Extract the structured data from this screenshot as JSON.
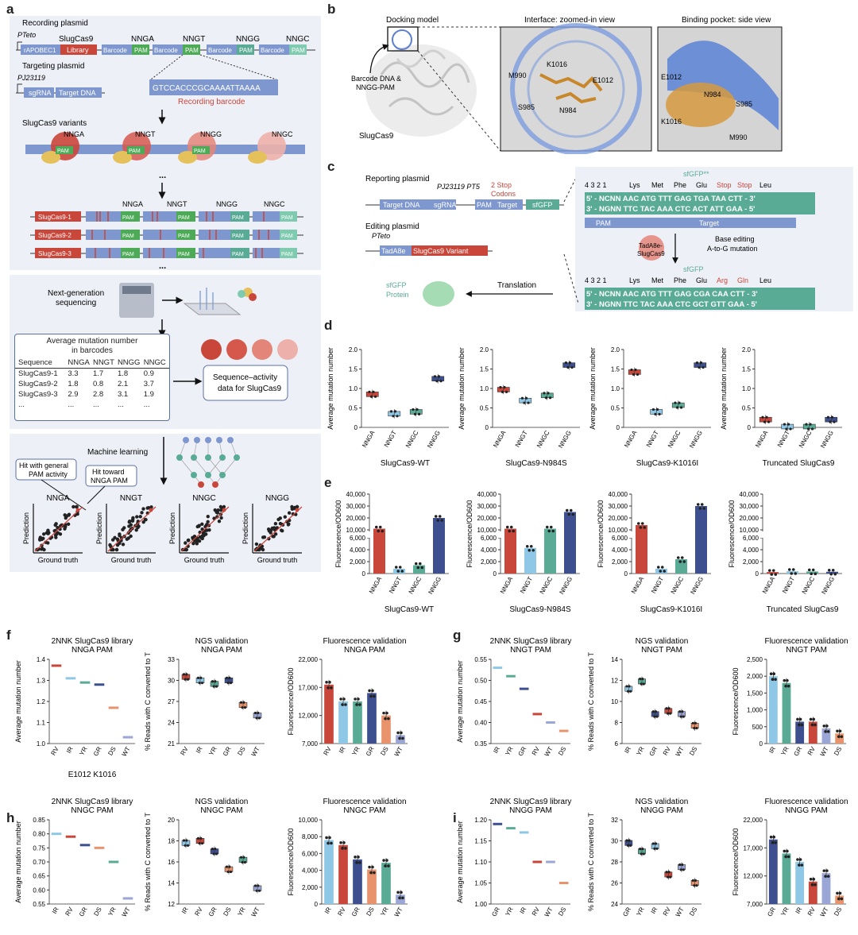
{
  "panels": {
    "a": {
      "letter": "a",
      "recording_plasmid_label": "Recording plasmid",
      "promoter_top": "PTeto",
      "slugcas9_label": "SlugCas9",
      "segments": [
        "rAPOBEC1",
        "Library",
        "Barcode",
        "PAM",
        "Barcode",
        "PAM",
        "Barcode",
        "PAM",
        "Barcode",
        "PAM"
      ],
      "pam_types": [
        "NNGA",
        "NNGT",
        "NNGG",
        "NNGC"
      ],
      "targeting_plasmid_label": "Targeting plasmid",
      "promoter_targeting": "PJ23119",
      "sgrna": "sgRNA",
      "target_dna": "Target DNA",
      "barcode_sequence": "GTCCACCCGCAAAATTAAAA",
      "recording_barcode": "Recording barcode",
      "variants_title": "SlugCas9 variants",
      "ellipsis": "...",
      "variant_rows": [
        "SlugCas9-1",
        "SlugCas9-2",
        "SlugCas9-3"
      ],
      "ngs_label": "Next-generation\nsequencing",
      "table_title": "Average mutation number\nin barcodes",
      "table_headers": [
        "Sequence",
        "NNGA",
        "NNGT",
        "NNGG",
        "NNGC"
      ],
      "table_rows": [
        [
          "SlugCas9-1",
          "3.3",
          "1.7",
          "1.8",
          "0.9"
        ],
        [
          "SlugCas9-2",
          "1.8",
          "0.8",
          "2.1",
          "3.7"
        ],
        [
          "SlugCas9-3",
          "2.9",
          "2.8",
          "3.1",
          "1.9"
        ],
        [
          "...",
          "...",
          "...",
          "...",
          "..."
        ]
      ],
      "seq_activity": "Sequence–activity\ndata for SlugCas9",
      "ml_label": "Machine learning",
      "hit_general": "Hit with general\nPAM activity",
      "hit_nnga": "Hit toward\nNNGA PAM",
      "scatter_titles": [
        "NNGA",
        "NNGT",
        "NNGC",
        "NNGG"
      ],
      "ylabel": "Prediction",
      "xlabel": "Ground truth"
    },
    "b": {
      "letter": "b",
      "titles": [
        "Docking model",
        "Interface: zoomed-in view",
        "Binding pocket: side view"
      ],
      "docking_caption": "Barcode DNA &\nNNGG-PAM",
      "protein_label": "SlugCas9",
      "residues_zoom": [
        "K1016",
        "M990",
        "E1012",
        "S985",
        "N984"
      ],
      "residues_side": [
        "E1012",
        "N984",
        "S985",
        "K1016",
        "M990"
      ]
    },
    "c": {
      "letter": "c",
      "reporting_plasmid": "Reporting plasmid",
      "promoters": "PJ23119 PT5",
      "stop_codons": "2 Stop\nCodons",
      "segments": [
        "Target DNA",
        "sgRNA",
        "PAM",
        "Target",
        "sfGFP"
      ],
      "editing_plasmid": "Editing plasmid",
      "promoter_edit": "PTeto",
      "editor": [
        "TadA8e",
        "SlugCas9 Variant"
      ],
      "sfgfp_protein": "sfGFP\nProtein",
      "translation": "Translation",
      "sfgfp_star": "sfGFP**",
      "sfgfp": "sfGFP",
      "numbers": "4 3 2 1",
      "aa_top": [
        "Lys",
        "Met",
        "Phe",
        "Glu",
        "Stop",
        "Stop",
        "Leu"
      ],
      "aa_bottom": [
        "Lys",
        "Met",
        "Phe",
        "Glu",
        "Arg",
        "Gln",
        "Leu"
      ],
      "seq_top_1": "5' - NCNN AAC ATG TTT GAG TGA TAA CTT - 3'",
      "seq_top_2": "3' - NGNN TTC TAC AAA CTC ACT ATT GAA - 5'",
      "seq_bot_1": "5' - NCNN AAC ATG TTT GAG CGA CAA CTT - 3'",
      "seq_bot_2": "3' - NGNN TTC TAC AAA CTC GCT GTT GAA - 5'",
      "pam": "PAM",
      "target": "Target",
      "editor_bubble": "TadA8e-\nSlugCas9",
      "base_editing": "Base editing\nA-to-G mutation"
    },
    "d": {
      "letter": "d"
    },
    "e": {
      "letter": "e"
    },
    "f": {
      "letter": "f"
    },
    "g": {
      "letter": "g"
    },
    "h": {
      "letter": "h"
    },
    "i": {
      "letter": "i"
    }
  },
  "colors": {
    "red": "#c9463a",
    "lightblue": "#8ec8e6",
    "teal": "#5aab96",
    "navy": "#3d4f8f",
    "salmon": "#e8936b",
    "lavender": "#9aa6d6",
    "green_pam": "#4daa57",
    "blue_bar": "#7f97cf"
  },
  "chart_data": [
    {
      "id": "d1",
      "type": "box",
      "title": "SlugCas9-WT",
      "ylabel": "Average mutation number",
      "ylim": [
        0,
        2.0
      ],
      "yticks": [
        "0",
        "0.5",
        "1.0",
        "1.5",
        "2.0"
      ],
      "categories": [
        "NNGA",
        "NNGT",
        "NNGC",
        "NNGG"
      ],
      "values": [
        0.85,
        0.35,
        0.4,
        1.25
      ]
    },
    {
      "id": "d2",
      "type": "box",
      "title": "SlugCas9-N984S",
      "ylabel": "Average mutation number",
      "ylim": [
        0,
        2.0
      ],
      "yticks": [
        "0",
        "0.5",
        "1.0",
        "1.5",
        "2.0"
      ],
      "categories": [
        "NNGA",
        "NNGT",
        "NNGC",
        "NNGG"
      ],
      "values": [
        0.97,
        0.69,
        0.82,
        1.6
      ]
    },
    {
      "id": "d3",
      "type": "box",
      "title": "SlugCas9-K1016I",
      "ylabel": "Average mutation number",
      "ylim": [
        0,
        2.0
      ],
      "yticks": [
        "0",
        "0.5",
        "1.0",
        "1.5",
        "2.0"
      ],
      "categories": [
        "NNGA",
        "NNGT",
        "NNGC",
        "NNGG"
      ],
      "values": [
        1.42,
        0.4,
        0.57,
        1.6
      ]
    },
    {
      "id": "d4",
      "type": "box",
      "title": "Truncated SlugCas9",
      "ylabel": "Average mutation number",
      "ylim": [
        0,
        2.0
      ],
      "yticks": [
        "0",
        "0.5",
        "1.0",
        "1.5",
        "2.0"
      ],
      "categories": [
        "NNGA",
        "NNGT",
        "NNGC",
        "NNGG"
      ],
      "values": [
        0.2,
        0.02,
        0.02,
        0.2
      ]
    },
    {
      "id": "e1",
      "type": "bar",
      "title": "SlugCas9-WT",
      "ylabel": "Fluorescence/OD600",
      "yticks_upper": [
        "10,000",
        "20,000",
        "30,000",
        "40,000"
      ],
      "yticks_lower": [
        "0",
        "2,000",
        "4,000",
        "6,000"
      ],
      "categories": [
        "NNGA",
        "NNGT",
        "NNGC",
        "NNGG"
      ],
      "values": [
        11000,
        800,
        1400,
        20000
      ]
    },
    {
      "id": "e2",
      "type": "bar",
      "title": "SlugCas9-N984S",
      "ylabel": "Fluorescence/OD600",
      "yticks_upper": [
        "10,000",
        "20,000",
        "30,000",
        "40,000"
      ],
      "yticks_lower": [
        "0",
        "2,000",
        "4,000",
        "6,000"
      ],
      "categories": [
        "NNGA",
        "NNGT",
        "NNGC",
        "NNGG"
      ],
      "values": [
        11000,
        4300,
        11000,
        25000
      ]
    },
    {
      "id": "e3",
      "type": "bar",
      "title": "SlugCas9-K1016I",
      "ylabel": "Fluorescence/OD600",
      "yticks_upper": [
        "10,000",
        "20,000",
        "30,000",
        "40,000"
      ],
      "yticks_lower": [
        "0",
        "2,000",
        "4,000",
        "6,000"
      ],
      "categories": [
        "NNGA",
        "NNGT",
        "NNGC",
        "NNGG"
      ],
      "values": [
        14000,
        800,
        2400,
        30000
      ]
    },
    {
      "id": "e4",
      "type": "bar",
      "title": "Truncated SlugCas9",
      "ylabel": "Fluorescence/OD600",
      "yticks_upper": [
        "10,000",
        "20,000",
        "30,000",
        "40,000"
      ],
      "yticks_lower": [
        "0",
        "2,000",
        "4,000",
        "6,000"
      ],
      "categories": [
        "NNGA",
        "NNGT",
        "NNGC",
        "NNGG"
      ],
      "values": [
        250,
        400,
        350,
        300
      ]
    },
    {
      "id": "f1",
      "type": "dash",
      "title": "2NNK SlugCas9 library\nNNGA PAM",
      "ylabel": "Average mutation number",
      "ylim": [
        1.0,
        1.4
      ],
      "yticks": [
        "1.0",
        "1.1",
        "1.2",
        "1.3",
        "1.4"
      ],
      "categories": [
        "RV",
        "IR",
        "YR",
        "GR",
        "DS",
        "WT"
      ],
      "values": [
        1.37,
        1.31,
        1.29,
        1.28,
        1.17,
        1.03
      ],
      "xlabel": "E1012 K1016"
    },
    {
      "id": "f2",
      "type": "box",
      "title": "NGS validation\nNNGA PAM",
      "ylabel": "% Reads with C converted to T",
      "ylim": [
        21,
        33
      ],
      "yticks": [
        "21",
        "24",
        "27",
        "30",
        "33"
      ],
      "categories": [
        "RV",
        "IR",
        "YR",
        "GR",
        "DS",
        "WT"
      ],
      "values": [
        30.5,
        30,
        29.5,
        30,
        26.5,
        25
      ]
    },
    {
      "id": "f3",
      "type": "bar",
      "title": "Fluorescence validation\nNNGA PAM",
      "ylabel": "Fluorescence/OD600",
      "ylim": [
        7000,
        22000
      ],
      "yticks": [
        "7,000",
        "12,000",
        "17,000",
        "22,000"
      ],
      "categories": [
        "RV",
        "IR",
        "YR",
        "GR",
        "DS",
        "WT"
      ],
      "values": [
        17500,
        14500,
        14500,
        16000,
        12000,
        8500
      ]
    },
    {
      "id": "g1",
      "type": "dash",
      "title": "2NNK SlugCas9 library\nNNGT PAM",
      "ylabel": "Average mutation number",
      "ylim": [
        0.35,
        0.55
      ],
      "yticks": [
        "0.35",
        "0.40",
        "0.45",
        "0.50",
        "0.55"
      ],
      "categories": [
        "IR",
        "YR",
        "GR",
        "RV",
        "WT",
        "DS"
      ],
      "values": [
        0.53,
        0.51,
        0.48,
        0.42,
        0.4,
        0.38
      ]
    },
    {
      "id": "g2",
      "type": "box",
      "title": "NGS validation\nNNGT PAM",
      "ylabel": "% Reads with C converted to T",
      "ylim": [
        6,
        14
      ],
      "yticks": [
        "6",
        "8",
        "10",
        "12",
        "14"
      ],
      "categories": [
        "IR",
        "YR",
        "GR",
        "RV",
        "WT",
        "DS"
      ],
      "values": [
        11.2,
        11.9,
        8.8,
        9.1,
        8.8,
        7.7
      ]
    },
    {
      "id": "g3",
      "type": "bar",
      "title": "Fluorescence validation\nNNGT PAM",
      "ylabel": "Fluorescence/OD600",
      "ylim": [
        0,
        2500
      ],
      "yticks": [
        "0",
        "500",
        "1,000",
        "1,500",
        "2,000",
        "2,500"
      ],
      "categories": [
        "IR",
        "YR",
        "GR",
        "RV",
        "WT",
        "DS"
      ],
      "values": [
        2000,
        1800,
        650,
        650,
        450,
        300
      ]
    },
    {
      "id": "h1",
      "type": "dash",
      "title": "2NNK SlugCas9 library\nNNGC PAM",
      "ylabel": "Average mutation number",
      "ylim": [
        0.55,
        0.85
      ],
      "yticks": [
        "0.55",
        "0.60",
        "0.65",
        "0.70",
        "0.75",
        "0.80",
        "0.85"
      ],
      "categories": [
        "IR",
        "RV",
        "GR",
        "DS",
        "YR",
        "WT"
      ],
      "values": [
        0.8,
        0.79,
        0.76,
        0.75,
        0.7,
        0.57
      ]
    },
    {
      "id": "h2",
      "type": "box",
      "title": "NGS validation\nNNGC PAM",
      "ylabel": "% Reads with C converted to T",
      "ylim": [
        12,
        20
      ],
      "yticks": [
        "12",
        "14",
        "16",
        "18",
        "20"
      ],
      "categories": [
        "IR",
        "RV",
        "GR",
        "DS",
        "YR",
        "WT"
      ],
      "values": [
        17.8,
        18,
        17,
        15.3,
        16.2,
        13.5
      ]
    },
    {
      "id": "h3",
      "type": "bar",
      "title": "Fluorescence validation\nNNGC PAM",
      "ylabel": "Fluorescence/OD600",
      "ylim": [
        0,
        10000
      ],
      "yticks": [
        "0",
        "2,000",
        "4,000",
        "6,000",
        "8,000",
        "10,000"
      ],
      "categories": [
        "IR",
        "RV",
        "GR",
        "DS",
        "YR",
        "WT"
      ],
      "values": [
        7600,
        7000,
        5300,
        4100,
        4900,
        1100
      ]
    },
    {
      "id": "i1",
      "type": "dash",
      "title": "2NNK SlugCas9 library\nNNGG PAM",
      "ylabel": "Average mutation number",
      "ylim": [
        1.0,
        1.2
      ],
      "yticks": [
        "1.00",
        "1.05",
        "1.10",
        "1.15",
        "1.20"
      ],
      "categories": [
        "GR",
        "YR",
        "IR",
        "RV",
        "WT",
        "DS"
      ],
      "values": [
        1.19,
        1.18,
        1.17,
        1.1,
        1.1,
        1.05
      ]
    },
    {
      "id": "i2",
      "type": "box",
      "title": "NGS validation\nNNGG PAM",
      "ylabel": "% Reads with C converted to T",
      "ylim": [
        24,
        32
      ],
      "yticks": [
        "24",
        "26",
        "28",
        "30",
        "32"
      ],
      "categories": [
        "GR",
        "YR",
        "IR",
        "RV",
        "WT",
        "DS"
      ],
      "values": [
        29.8,
        29,
        29.5,
        26.8,
        27.5,
        26
      ]
    },
    {
      "id": "i3",
      "type": "bar",
      "title": "Fluorescence validation\nNNGG PAM",
      "ylabel": "Fluorescence/OD600",
      "ylim": [
        7000,
        22000
      ],
      "yticks": [
        "7,000",
        "12,000",
        "17,000",
        "22,000"
      ],
      "categories": [
        "GR",
        "YR",
        "IR",
        "RV",
        "WT",
        "DS"
      ],
      "values": [
        18500,
        16000,
        14500,
        11000,
        12500,
        8500
      ]
    }
  ],
  "chart_colors": {
    "d": [
      "#c9463a",
      "#8ec8e6",
      "#5aab96",
      "#3d4f8f"
    ],
    "f": [
      "#c9463a",
      "#8ec8e6",
      "#5aab96",
      "#3d4f8f",
      "#e8936b",
      "#9aa6d6"
    ],
    "g": [
      "#8ec8e6",
      "#5aab96",
      "#3d4f8f",
      "#c9463a",
      "#9aa6d6",
      "#e8936b"
    ],
    "h": [
      "#8ec8e6",
      "#c9463a",
      "#3d4f8f",
      "#e8936b",
      "#5aab96",
      "#9aa6d6"
    ],
    "i": [
      "#3d4f8f",
      "#5aab96",
      "#8ec8e6",
      "#c9463a",
      "#9aa6d6",
      "#e8936b"
    ]
  }
}
